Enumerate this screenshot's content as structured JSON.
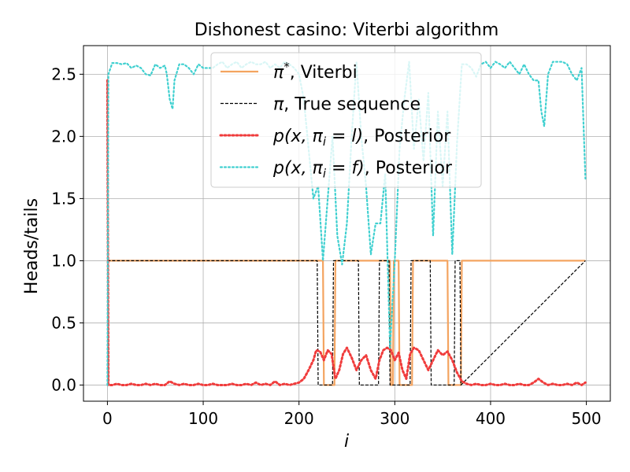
{
  "chart_data": {
    "type": "line",
    "title": "Dishonest casino: Viterbi algorithm",
    "xlabel": "i",
    "ylabel": "Heads/tails",
    "xlim": [
      -25,
      525
    ],
    "ylim": [
      -0.13,
      2.73
    ],
    "xticks": [
      0,
      100,
      200,
      300,
      400,
      500
    ],
    "yticks": [
      0.0,
      0.5,
      1.0,
      1.5,
      2.0,
      2.5
    ],
    "xtick_labels": [
      "0",
      "100",
      "200",
      "300",
      "400",
      "500"
    ],
    "ytick_labels": [
      "0.0",
      "0.5",
      "1.0",
      "1.5",
      "2.0",
      "2.5"
    ],
    "grid": true,
    "legend_placement": "top-center",
    "series": [
      {
        "key": "viterbi",
        "legend": {
          "sym": "π",
          "sup": "*",
          "rest": ", Viterbi"
        },
        "color": "#f4a460",
        "style": "solid",
        "x": [
          0,
          225,
          226,
          237,
          238,
          295,
          296,
          298,
          299,
          304,
          305,
          318,
          319,
          355,
          356,
          369,
          370,
          499
        ],
        "values": [
          1,
          1,
          0,
          0,
          1,
          1,
          0,
          0,
          1,
          1,
          0,
          0,
          1,
          1,
          0,
          0,
          1,
          1
        ]
      },
      {
        "key": "true_sequence",
        "legend": {
          "sym": "π",
          "rest": ", True sequence"
        },
        "color": "#000000",
        "style": "dashed",
        "x": [
          0,
          219,
          220,
          235,
          236,
          262,
          263,
          283,
          284,
          294,
          295,
          316,
          317,
          337,
          338,
          362,
          363,
          368,
          369,
          499
        ],
        "values": [
          1,
          1,
          0,
          0,
          1,
          1,
          0,
          0,
          1,
          1,
          0,
          0,
          1,
          1,
          0,
          0,
          1,
          1,
          0,
          1
        ]
      },
      {
        "key": "posterior_l",
        "legend": {
          "text": "p(x, π",
          "sub": "i",
          "rest_math": " = l)",
          "rest": ", Posterior"
        },
        "color": "#f03c3c",
        "style": "dotted",
        "x": [
          0,
          1,
          5,
          10,
          15,
          20,
          25,
          30,
          35,
          40,
          45,
          50,
          55,
          60,
          65,
          70,
          75,
          80,
          85,
          90,
          95,
          100,
          105,
          110,
          115,
          120,
          125,
          130,
          135,
          140,
          145,
          150,
          155,
          160,
          165,
          170,
          175,
          180,
          185,
          190,
          195,
          200,
          205,
          210,
          215,
          218,
          222,
          226,
          230,
          234,
          238,
          242,
          246,
          250,
          255,
          260,
          265,
          270,
          275,
          280,
          284,
          288,
          292,
          296,
          300,
          304,
          308,
          312,
          316,
          320,
          325,
          330,
          335,
          340,
          345,
          350,
          355,
          360,
          365,
          370,
          375,
          380,
          385,
          390,
          395,
          400,
          405,
          410,
          415,
          420,
          425,
          430,
          435,
          440,
          445,
          450,
          455,
          460,
          465,
          470,
          475,
          480,
          485,
          490,
          495,
          499
        ],
        "values": [
          2.45,
          0.0,
          0.0,
          0.01,
          0.0,
          0.0,
          0.01,
          0.0,
          0.0,
          0.01,
          0.0,
          0.01,
          0.0,
          0.0,
          0.03,
          0.01,
          0.0,
          0.01,
          0.0,
          0.0,
          0.01,
          0.0,
          0.0,
          0.01,
          0.0,
          0.0,
          0.0,
          0.01,
          0.0,
          0.0,
          0.01,
          0.0,
          0.02,
          0.0,
          0.01,
          0.0,
          0.03,
          0.0,
          0.01,
          0.0,
          0.01,
          0.02,
          0.05,
          0.12,
          0.2,
          0.28,
          0.27,
          0.2,
          0.28,
          0.25,
          0.05,
          0.12,
          0.25,
          0.3,
          0.22,
          0.12,
          0.2,
          0.24,
          0.12,
          0.05,
          0.2,
          0.28,
          0.3,
          0.28,
          0.2,
          0.26,
          0.12,
          0.05,
          0.25,
          0.3,
          0.28,
          0.2,
          0.12,
          0.2,
          0.28,
          0.24,
          0.27,
          0.2,
          0.1,
          0.03,
          0.01,
          0.0,
          0.01,
          0.0,
          0.0,
          0.01,
          0.0,
          0.0,
          0.01,
          0.0,
          0.0,
          0.01,
          0.0,
          0.0,
          0.02,
          0.05,
          0.02,
          0.0,
          0.01,
          0.0,
          0.0,
          0.01,
          0.0,
          0.02,
          0.0,
          0.02
        ]
      },
      {
        "key": "posterior_f",
        "legend": {
          "text": "p(x, π",
          "sub": "i",
          "rest_math": " = f)",
          "rest": ", Posterior"
        },
        "color": "#40d0d0",
        "style": "dotted",
        "x": [
          0,
          1,
          5,
          10,
          15,
          20,
          25,
          30,
          35,
          40,
          45,
          50,
          55,
          60,
          62,
          65,
          68,
          70,
          75,
          80,
          85,
          90,
          95,
          100,
          105,
          110,
          115,
          120,
          125,
          130,
          135,
          140,
          145,
          150,
          155,
          160,
          165,
          170,
          175,
          180,
          185,
          190,
          195,
          200,
          205,
          210,
          215,
          220,
          225,
          230,
          235,
          240,
          245,
          250,
          255,
          260,
          265,
          270,
          275,
          280,
          285,
          290,
          295,
          300,
          305,
          310,
          315,
          320,
          325,
          330,
          335,
          340,
          345,
          350,
          355,
          360,
          365,
          370,
          375,
          380,
          385,
          390,
          395,
          400,
          405,
          410,
          415,
          420,
          425,
          430,
          435,
          440,
          445,
          450,
          453,
          456,
          460,
          465,
          470,
          475,
          480,
          485,
          490,
          495,
          499
        ],
        "values": [
          0.0,
          2.5,
          2.59,
          2.59,
          2.58,
          2.59,
          2.55,
          2.57,
          2.55,
          2.5,
          2.49,
          2.58,
          2.55,
          2.57,
          2.5,
          2.3,
          2.22,
          2.45,
          2.58,
          2.58,
          2.55,
          2.5,
          2.58,
          2.55,
          2.55,
          2.55,
          2.58,
          2.6,
          2.55,
          2.58,
          2.6,
          2.55,
          2.58,
          2.6,
          2.58,
          2.58,
          2.6,
          2.55,
          2.58,
          2.55,
          2.6,
          2.58,
          2.55,
          2.5,
          2.3,
          1.9,
          1.5,
          1.6,
          1.0,
          1.5,
          2.0,
          1.2,
          0.97,
          1.3,
          2.0,
          2.6,
          2.0,
          1.6,
          1.05,
          1.3,
          1.3,
          1.7,
          0.3,
          1.0,
          1.9,
          2.3,
          2.6,
          1.9,
          2.3,
          1.8,
          2.35,
          1.2,
          2.2,
          1.6,
          2.2,
          1.05,
          1.95,
          2.58,
          2.58,
          2.55,
          2.48,
          2.58,
          2.6,
          2.55,
          2.6,
          2.58,
          2.55,
          2.6,
          2.55,
          2.5,
          2.58,
          2.5,
          2.45,
          2.45,
          2.2,
          2.08,
          2.5,
          2.6,
          2.6,
          2.6,
          2.58,
          2.5,
          2.45,
          2.55,
          1.66
        ]
      }
    ]
  }
}
